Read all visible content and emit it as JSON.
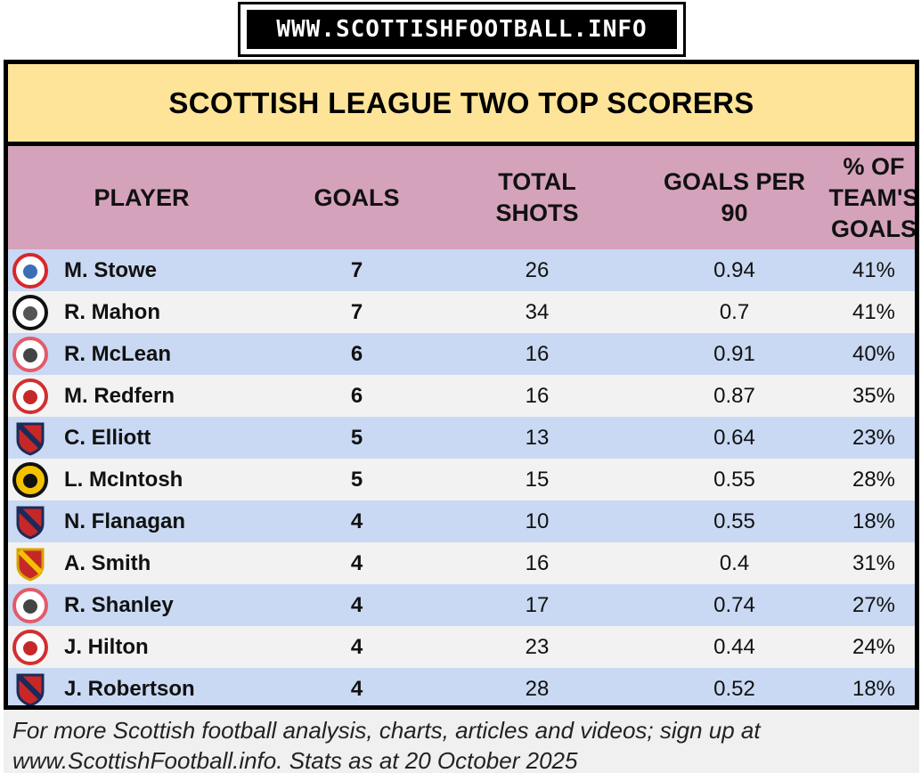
{
  "banner": {
    "text": "WWW.SCOTTISHFOOTBALL.INFO"
  },
  "title": "SCOTTISH LEAGUE TWO TOP SCORERS",
  "chart_data": {
    "type": "table",
    "title": "SCOTTISH LEAGUE TWO TOP SCORERS",
    "columns": [
      "PLAYER",
      "GOALS",
      "TOTAL\nSHOTS",
      "GOALS PER\n90",
      "% OF\nTEAM'S\nGOALS"
    ],
    "rows": [
      {
        "player": "M. Stowe",
        "crest": "spartans-crest-icon",
        "goals": "7",
        "shots": "26",
        "gp90": "0.94",
        "pct": "41%"
      },
      {
        "player": "R. Mahon",
        "crest": "edinburgh-city-crest-icon",
        "goals": "7",
        "shots": "34",
        "gp90": "0.7",
        "pct": "41%"
      },
      {
        "player": "R. McLean",
        "crest": "stirling-albion-crest-icon",
        "goals": "6",
        "shots": "16",
        "gp90": "0.91",
        "pct": "40%"
      },
      {
        "player": "M. Redfern",
        "crest": "clyde-crest-icon",
        "goals": "6",
        "shots": "16",
        "gp90": "0.87",
        "pct": "35%"
      },
      {
        "player": "C. Elliott",
        "crest": "elgin-city-crest-icon",
        "goals": "5",
        "shots": "13",
        "gp90": "0.64",
        "pct": "23%"
      },
      {
        "player": "L. McIntosh",
        "crest": "dumbarton-crest-icon",
        "goals": "5",
        "shots": "15",
        "gp90": "0.55",
        "pct": "28%"
      },
      {
        "player": "N. Flanagan",
        "crest": "elgin-city-crest-icon",
        "goals": "4",
        "shots": "10",
        "gp90": "0.55",
        "pct": "18%"
      },
      {
        "player": "A. Smith",
        "crest": "annan-athletic-crest-icon",
        "goals": "4",
        "shots": "16",
        "gp90": "0.4",
        "pct": "31%"
      },
      {
        "player": "R. Shanley",
        "crest": "stirling-albion-crest-icon",
        "goals": "4",
        "shots": "17",
        "gp90": "0.74",
        "pct": "27%"
      },
      {
        "player": "J. Hilton",
        "crest": "clyde-crest-icon",
        "goals": "4",
        "shots": "23",
        "gp90": "0.44",
        "pct": "24%"
      },
      {
        "player": "J. Robertson",
        "crest": "elgin-city-crest-icon",
        "goals": "4",
        "shots": "28",
        "gp90": "0.52",
        "pct": "18%"
      }
    ]
  },
  "footer": {
    "line1": "For more Scottish football analysis, charts, articles and videos; sign up at",
    "line2": "www.ScottishFootball.info. Stats as at 20 October 2025"
  },
  "colors": {
    "title_bg": "#fde498",
    "header_bg": "#d5a2bc",
    "row_blue": "#c9d9f3",
    "row_grey": "#f2f2f2",
    "footer_bg": "#f0f0f0"
  }
}
